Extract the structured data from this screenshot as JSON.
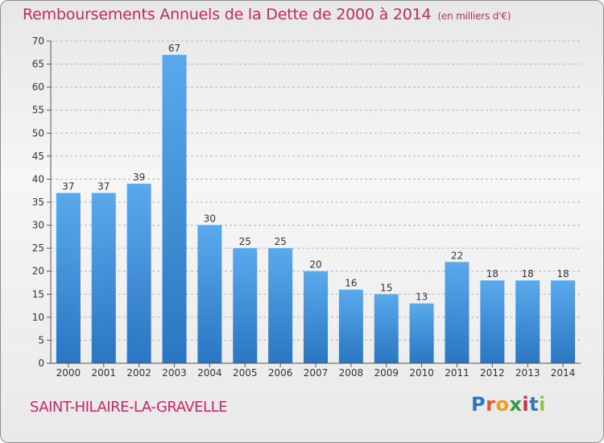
{
  "title": "Remboursements Annuels de la Dette de 2000 à 2014",
  "title_unit": "(en milliers d'€)",
  "commune": "SAINT-HILAIRE-LA-GRAVELLE",
  "logo_text": "Proxiti",
  "colors": {
    "title": "#c42a62",
    "bar_top": "#5aa9ec",
    "bar_bottom": "#2a76c2",
    "grid": "#b4b4b4"
  },
  "chart_data": {
    "type": "bar",
    "categories": [
      "2000",
      "2001",
      "2002",
      "2003",
      "2004",
      "2005",
      "2006",
      "2007",
      "2008",
      "2009",
      "2010",
      "2011",
      "2012",
      "2013",
      "2014"
    ],
    "values": [
      37,
      37,
      39,
      67,
      30,
      25,
      25,
      20,
      16,
      15,
      13,
      22,
      18,
      18,
      18
    ],
    "ylim": [
      0,
      70
    ],
    "yticks": [
      0,
      5,
      10,
      15,
      20,
      25,
      30,
      35,
      40,
      45,
      50,
      55,
      60,
      65,
      70
    ],
    "grid": true,
    "data_labels": true
  }
}
